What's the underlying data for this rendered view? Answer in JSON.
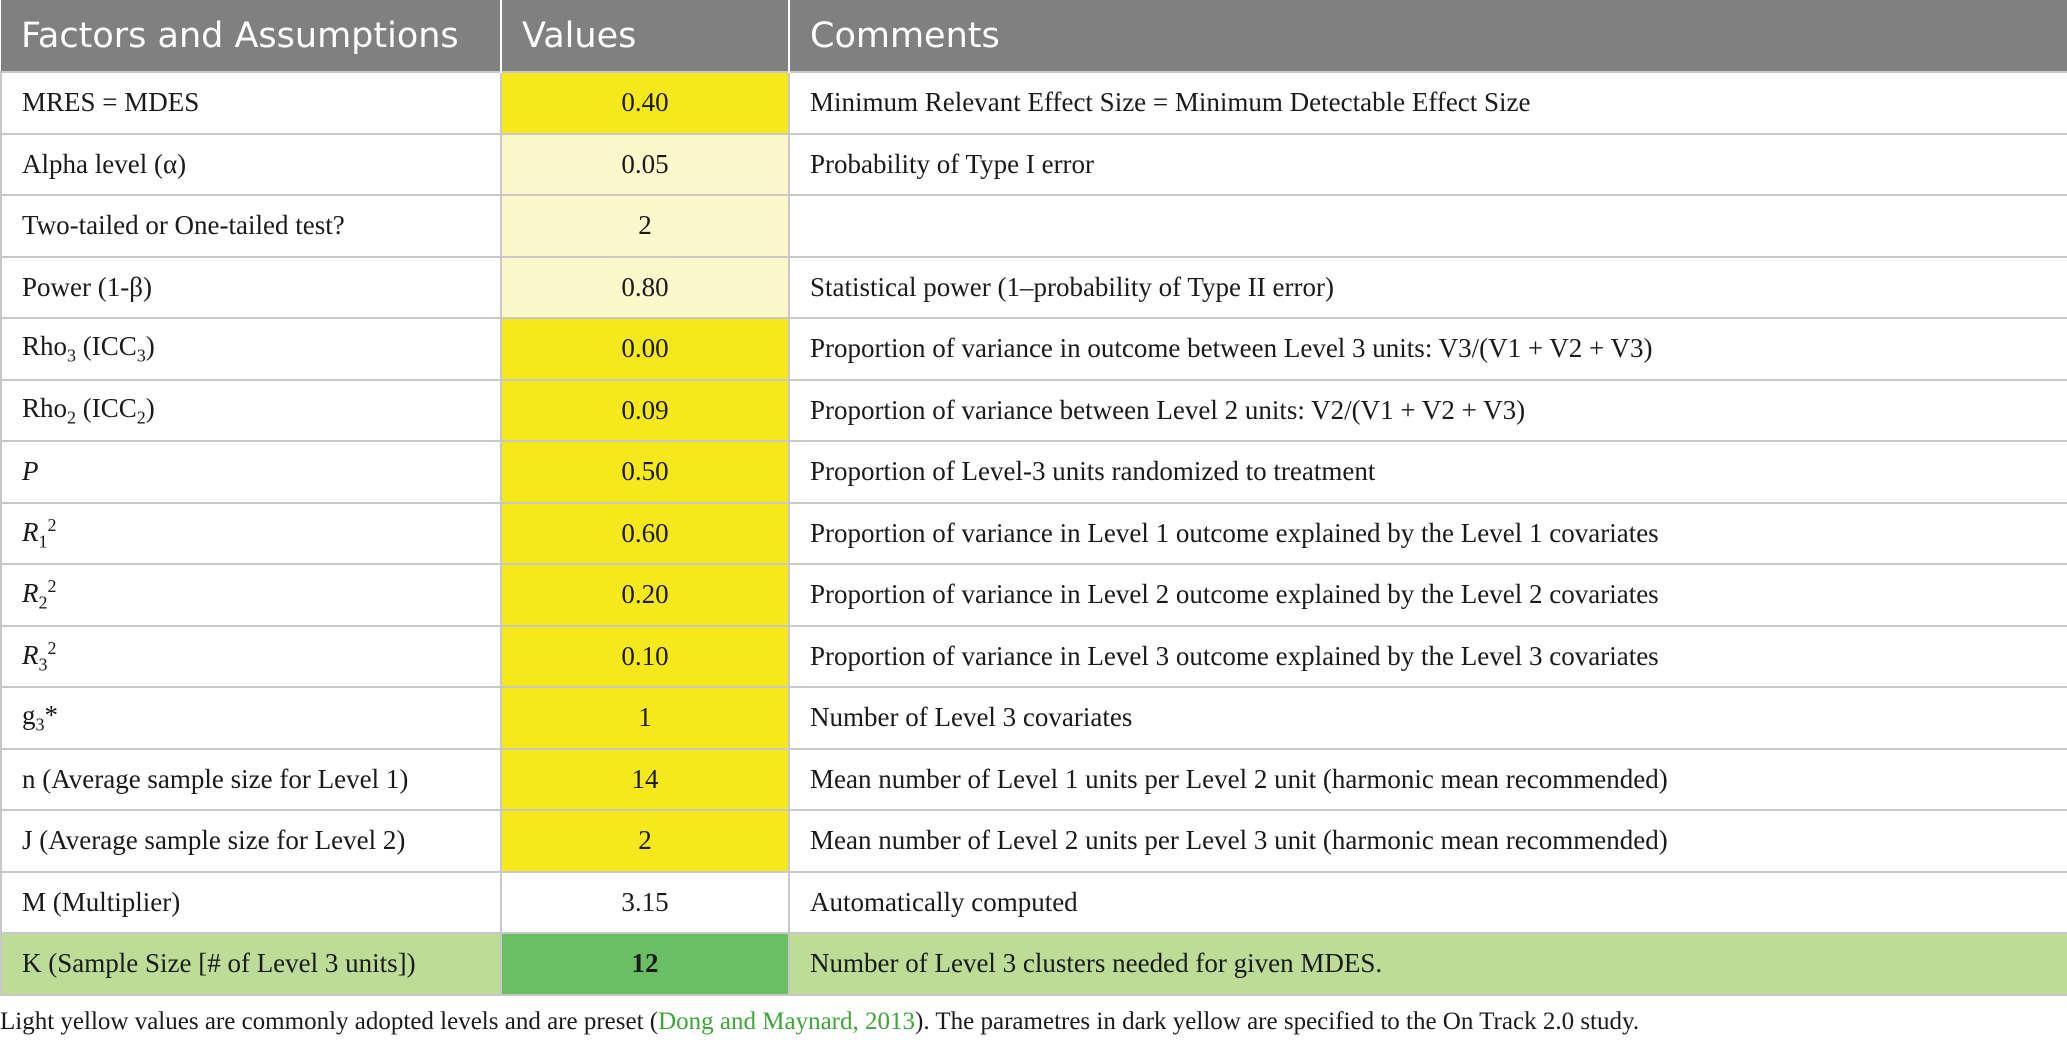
{
  "headers": [
    "Factors and Assumptions",
    "Values",
    "Comments"
  ],
  "rows": [
    {
      "factor": "MRES = MDES",
      "value": "0.40",
      "comment": "Minimum Relevant Effect Size = Minimum Detectable Effect Size",
      "shade": "dark"
    },
    {
      "factor": "Alpha level (α)",
      "value": "0.05",
      "comment": "Probability of Type I error",
      "shade": "light"
    },
    {
      "factor": "Two-tailed or One-tailed test?",
      "value": "2",
      "comment": "",
      "shade": "light"
    },
    {
      "factor": "Power (1-β)",
      "value": "0.80",
      "comment": "Statistical power (1–probability of Type II error)",
      "shade": "light"
    },
    {
      "factor_main": "Rho",
      "factor_sub": "3",
      "factor_rest": " (ICC",
      "factor_sub2": "3",
      "factor_close": ")",
      "value": "0.00",
      "comment": "Proportion of variance in outcome between Level 3 units: V3/(V1 + V2 + V3)",
      "shade": "dark"
    },
    {
      "factor_main": "Rho",
      "factor_sub": "2",
      "factor_rest": " (ICC",
      "factor_sub2": "2",
      "factor_close": ")",
      "value": "0.09",
      "comment": "Proportion of variance between Level 2 units: V2/(V1 + V2 + V3)",
      "shade": "dark"
    },
    {
      "factor": "P",
      "value": "0.50",
      "comment": "Proportion of Level-3 units randomized to treatment",
      "shade": "dark"
    },
    {
      "factor_main": "R",
      "factor_sub": "1",
      "factor_sup": "2",
      "value": "0.60",
      "comment": "Proportion of variance in Level 1 outcome explained by the Level 1 covariates",
      "shade": "dark"
    },
    {
      "factor_main": "R",
      "factor_sub": "2",
      "factor_sup": "2",
      "value": "0.20",
      "comment": "Proportion of variance in Level 2 outcome explained by the Level 2 covariates",
      "shade": "dark"
    },
    {
      "factor_main": "R",
      "factor_sub": "3",
      "factor_sup": "2",
      "value": "0.10",
      "comment": "Proportion of variance in Level 3 outcome explained by the Level 3 covariates",
      "shade": "dark"
    },
    {
      "factor_main": "g",
      "factor_sub": "3",
      "factor_rest": "*",
      "value": "1",
      "comment": "Number of Level 3 covariates",
      "shade": "dark"
    },
    {
      "factor": "n (Average sample size for Level 1)",
      "value": "14",
      "comment": "Mean number of Level 1 units per Level 2 unit (harmonic mean recommended)",
      "shade": "dark"
    },
    {
      "factor": "J (Average sample size for Level 2)",
      "value": "2",
      "comment": "Mean number of Level 2 units per Level 3 unit (harmonic mean recommended)",
      "shade": "dark"
    },
    {
      "factor": "M (Multiplier)",
      "value": "3.15",
      "comment": "Automatically computed",
      "shade": "white"
    },
    {
      "factor": "K (Sample Size [# of Level 3 units])",
      "value": "12",
      "comment": "Number of Level 3 clusters needed for given MDES.",
      "shade": "green"
    }
  ],
  "note": {
    "before": "Light yellow values are commonly adopted levels and are preset (",
    "citation": "Dong and Maynard, 2013",
    "after": "). The parametres in dark yellow are specified to the On Track 2.0 study."
  },
  "colors": {
    "header_bg": "#808080",
    "dark_yellow": "#f5e81c",
    "light_yellow": "#fcf8cc",
    "green_row": "#bcdc98",
    "green_value": "#6abf63",
    "citation": "#3fa53a"
  }
}
